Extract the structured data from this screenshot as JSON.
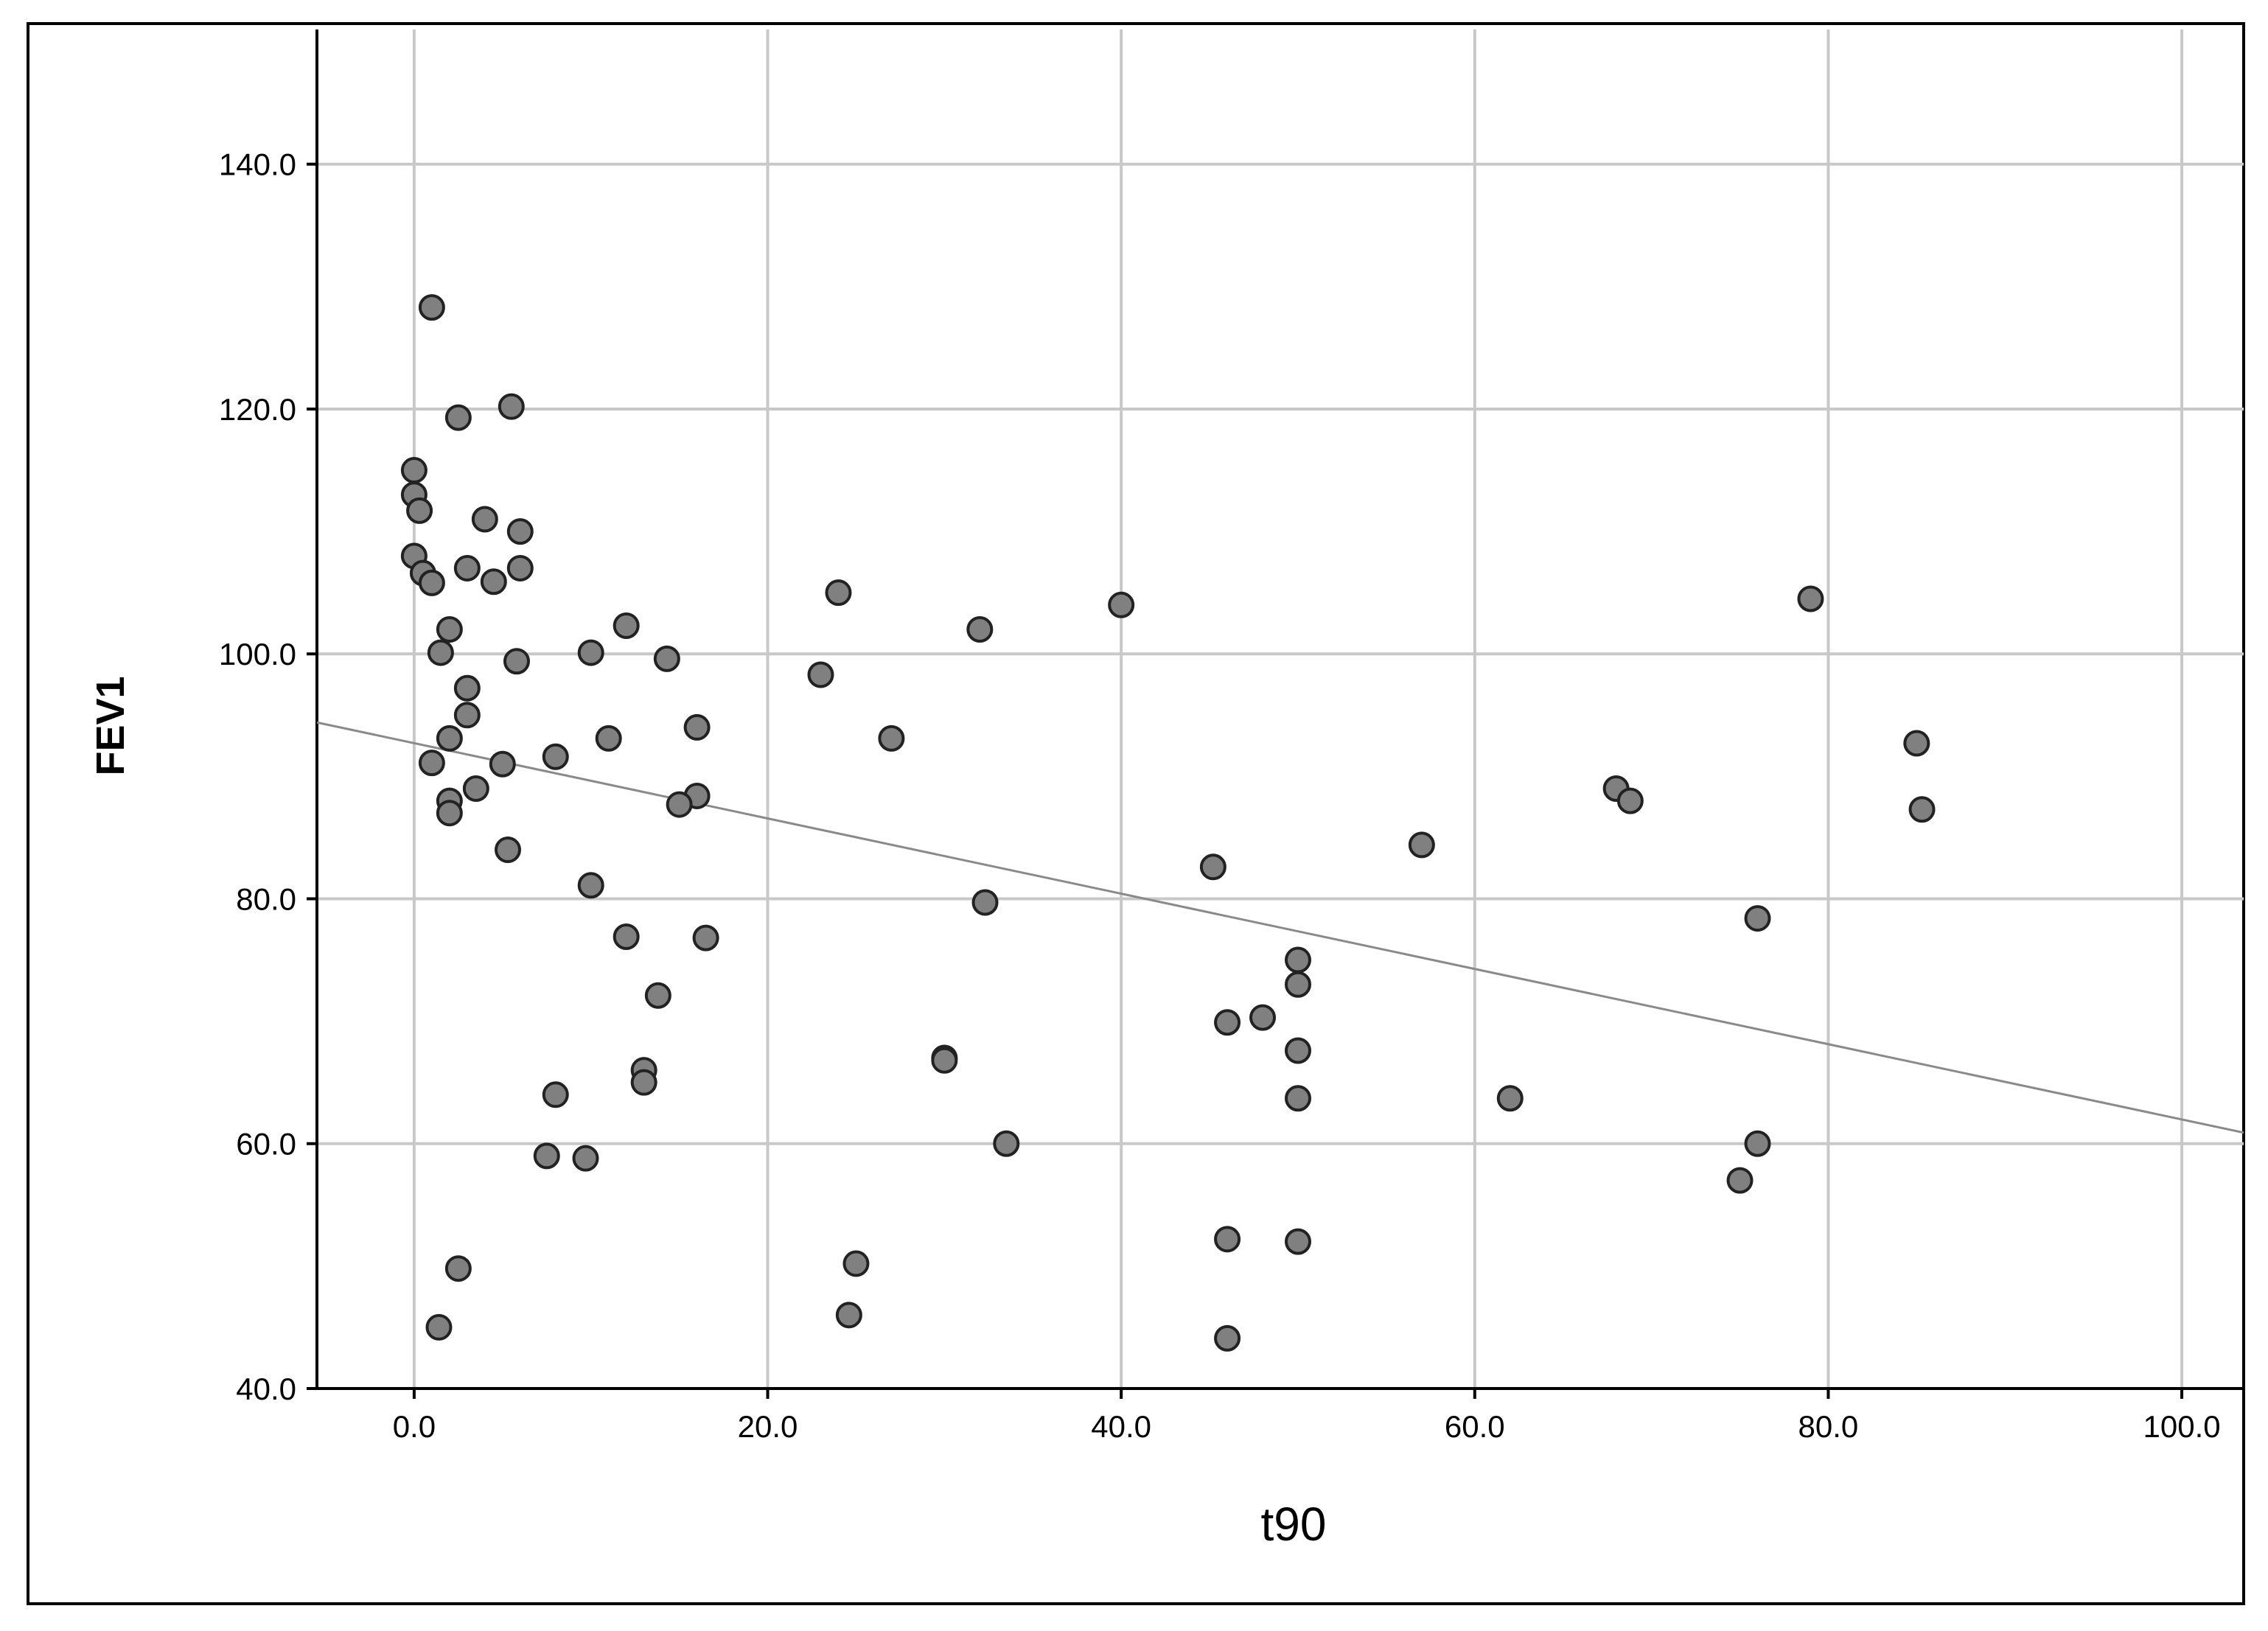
{
  "chart_data": {
    "type": "scatter",
    "xlabel": "t90",
    "ylabel": "FEV1",
    "xlim": [
      -5.5,
      103.5
    ],
    "ylim": [
      40,
      151
    ],
    "x_ticks": [
      0,
      20,
      40,
      60,
      80,
      100
    ],
    "y_ticks": [
      40,
      60,
      80,
      100,
      120,
      140
    ],
    "x_tick_labels": [
      "0.0",
      "20.0",
      "40.0",
      "60.0",
      "80.0",
      "100.0"
    ],
    "y_tick_labels": [
      "40.0",
      "60.0",
      "80.0",
      "100.0",
      "120.0",
      "140.0"
    ],
    "grid": true,
    "legend": "none",
    "colors": {
      "point_fill": "#808080",
      "point_edge": "#222222",
      "grid": "#c8c8c8",
      "fit_line": "#8a8a8a",
      "axis": "#000000"
    },
    "fit_line": {
      "x": [
        -5.5,
        103.5
      ],
      "y": [
        94.4,
        60.9
      ]
    },
    "points": [
      {
        "x": 1.0,
        "y": 128.3
      },
      {
        "x": 2.5,
        "y": 119.3
      },
      {
        "x": 5.5,
        "y": 120.2
      },
      {
        "x": 0.0,
        "y": 115.0
      },
      {
        "x": 0.0,
        "y": 113.0
      },
      {
        "x": 0.3,
        "y": 111.7
      },
      {
        "x": 4.0,
        "y": 111.0
      },
      {
        "x": 6.0,
        "y": 110.0
      },
      {
        "x": 0.0,
        "y": 108.0
      },
      {
        "x": 0.5,
        "y": 106.6
      },
      {
        "x": 1.0,
        "y": 105.8
      },
      {
        "x": 3.0,
        "y": 107.0
      },
      {
        "x": 4.5,
        "y": 105.9
      },
      {
        "x": 6.0,
        "y": 107.0
      },
      {
        "x": 2.0,
        "y": 102.0
      },
      {
        "x": 1.5,
        "y": 100.1
      },
      {
        "x": 5.8,
        "y": 99.4
      },
      {
        "x": 3.0,
        "y": 97.2
      },
      {
        "x": 3.0,
        "y": 95.0
      },
      {
        "x": 2.0,
        "y": 93.1
      },
      {
        "x": 1.0,
        "y": 91.1
      },
      {
        "x": 5.0,
        "y": 91.0
      },
      {
        "x": 3.5,
        "y": 89.0
      },
      {
        "x": 2.0,
        "y": 88.0
      },
      {
        "x": 2.0,
        "y": 87.0
      },
      {
        "x": 5.3,
        "y": 84.0
      },
      {
        "x": 12.0,
        "y": 102.3
      },
      {
        "x": 10.0,
        "y": 100.1
      },
      {
        "x": 14.3,
        "y": 99.6
      },
      {
        "x": 16.0,
        "y": 94.0
      },
      {
        "x": 11.0,
        "y": 93.1
      },
      {
        "x": 8.0,
        "y": 91.6
      },
      {
        "x": 16.0,
        "y": 88.4
      },
      {
        "x": 15.0,
        "y": 87.7
      },
      {
        "x": 10.0,
        "y": 81.1
      },
      {
        "x": 12.0,
        "y": 76.9
      },
      {
        "x": 16.5,
        "y": 76.8
      },
      {
        "x": 13.8,
        "y": 72.1
      },
      {
        "x": 13.0,
        "y": 66.0
      },
      {
        "x": 13.0,
        "y": 65.0
      },
      {
        "x": 8.0,
        "y": 64.0
      },
      {
        "x": 7.5,
        "y": 59.0
      },
      {
        "x": 9.7,
        "y": 58.8
      },
      {
        "x": 2.5,
        "y": 49.8
      },
      {
        "x": 1.4,
        "y": 45.0
      },
      {
        "x": 24.0,
        "y": 105.0
      },
      {
        "x": 23.0,
        "y": 98.3
      },
      {
        "x": 27.0,
        "y": 93.1
      },
      {
        "x": 32.0,
        "y": 102.0
      },
      {
        "x": 40.0,
        "y": 104.0
      },
      {
        "x": 32.3,
        "y": 79.7
      },
      {
        "x": 30.0,
        "y": 67.0
      },
      {
        "x": 30.0,
        "y": 66.8
      },
      {
        "x": 33.5,
        "y": 60.0
      },
      {
        "x": 25.0,
        "y": 50.2
      },
      {
        "x": 24.6,
        "y": 46.0
      },
      {
        "x": 45.2,
        "y": 82.6
      },
      {
        "x": 46.0,
        "y": 69.9
      },
      {
        "x": 48.0,
        "y": 70.3
      },
      {
        "x": 50.0,
        "y": 75.0
      },
      {
        "x": 50.0,
        "y": 73.0
      },
      {
        "x": 50.0,
        "y": 67.6
      },
      {
        "x": 50.0,
        "y": 63.7
      },
      {
        "x": 46.0,
        "y": 52.2
      },
      {
        "x": 50.0,
        "y": 52.0
      },
      {
        "x": 46.0,
        "y": 44.1
      },
      {
        "x": 57.0,
        "y": 84.4
      },
      {
        "x": 62.0,
        "y": 63.7
      },
      {
        "x": 68.0,
        "y": 89.0
      },
      {
        "x": 68.8,
        "y": 88.0
      },
      {
        "x": 76.0,
        "y": 78.4
      },
      {
        "x": 76.0,
        "y": 60.0
      },
      {
        "x": 75.0,
        "y": 57.0
      },
      {
        "x": 79.0,
        "y": 104.5
      },
      {
        "x": 85.0,
        "y": 92.7
      },
      {
        "x": 85.3,
        "y": 87.3
      }
    ]
  }
}
